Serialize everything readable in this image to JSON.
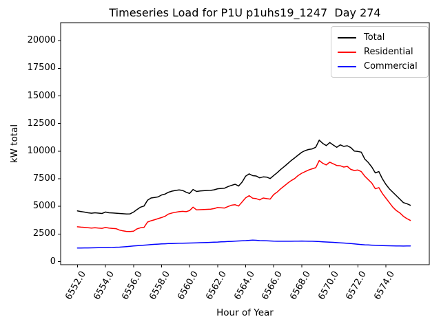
{
  "title": "Timeseries Load for P1U p1uhs19_1247  Day 274",
  "legend": {
    "entries": [
      {
        "label": "Total",
        "color": "#000000"
      },
      {
        "label": "Residential",
        "color": "#ff0000"
      },
      {
        "label": "Commercial",
        "color": "#0000ff"
      }
    ]
  },
  "chart_data": {
    "type": "line",
    "title": "Timeseries Load for P1U p1uhs19_1247  Day 274",
    "xlabel": "Hour of Year",
    "ylabel": "kW total",
    "grid": false,
    "legend_position": "upper right",
    "xlim": [
      6550.8,
      6577.1
    ],
    "ylim": [
      -280,
      21630
    ],
    "xtick_values": [
      6552,
      6554,
      6556,
      6558,
      6560,
      6562,
      6564,
      6566,
      6568,
      6570,
      6572,
      6574
    ],
    "xtick_labels": [
      "6552.0",
      "6554.0",
      "6556.0",
      "6558.0",
      "6560.0",
      "6562.0",
      "6564.0",
      "6566.0",
      "6568.0",
      "6570.0",
      "6572.0",
      "6574.0"
    ],
    "ytick_values": [
      0,
      2500,
      5000,
      7500,
      10000,
      12500,
      15000,
      17500,
      20000
    ],
    "ytick_labels": [
      "0",
      "2500",
      "5000",
      "7500",
      "10000",
      "12500",
      "15000",
      "17500",
      "20000"
    ],
    "x_start": 6552.0,
    "x_step": 0.25,
    "series": [
      {
        "name": "Total",
        "color": "#000000",
        "values": [
          4590,
          4530,
          4480,
          4420,
          4380,
          4420,
          4390,
          4360,
          4490,
          4420,
          4400,
          4380,
          4360,
          4330,
          4310,
          4320,
          4480,
          4720,
          4930,
          5030,
          5550,
          5760,
          5800,
          5860,
          6030,
          6110,
          6280,
          6380,
          6440,
          6490,
          6440,
          6280,
          6170,
          6530,
          6350,
          6390,
          6420,
          6440,
          6450,
          6500,
          6590,
          6620,
          6650,
          6800,
          6900,
          7000,
          6840,
          7200,
          7730,
          7940,
          7780,
          7750,
          7580,
          7670,
          7650,
          7520,
          7790,
          8050,
          8350,
          8600,
          8870,
          9150,
          9390,
          9650,
          9900,
          10050,
          10150,
          10200,
          10350,
          11000,
          10700,
          10500,
          10780,
          10550,
          10350,
          10570,
          10430,
          10490,
          10320,
          10010,
          9970,
          9910,
          9280,
          8970,
          8560,
          8030,
          8150,
          7500,
          7000,
          6590,
          6280,
          5970,
          5660,
          5340,
          5240,
          5100
        ]
      },
      {
        "name": "Residential",
        "color": "#ff0000",
        "values": [
          3150,
          3120,
          3100,
          3060,
          3030,
          3060,
          3030,
          3010,
          3090,
          3040,
          3000,
          2980,
          2850,
          2780,
          2730,
          2720,
          2760,
          2960,
          3060,
          3100,
          3580,
          3700,
          3790,
          3890,
          3990,
          4100,
          4310,
          4400,
          4470,
          4520,
          4550,
          4520,
          4620,
          4930,
          4680,
          4700,
          4720,
          4730,
          4750,
          4800,
          4890,
          4870,
          4850,
          4990,
          5110,
          5150,
          5030,
          5400,
          5770,
          5970,
          5740,
          5700,
          5590,
          5760,
          5700,
          5660,
          6070,
          6300,
          6590,
          6850,
          7100,
          7330,
          7520,
          7800,
          8000,
          8150,
          8300,
          8400,
          8500,
          9150,
          8900,
          8750,
          9000,
          8850,
          8700,
          8680,
          8560,
          8620,
          8350,
          8250,
          8290,
          8150,
          7730,
          7420,
          7100,
          6590,
          6700,
          6170,
          5760,
          5340,
          4930,
          4620,
          4410,
          4100,
          3890,
          3730
        ]
      },
      {
        "name": "Commercial",
        "color": "#0000ff",
        "values": [
          1230,
          1233,
          1236,
          1240,
          1245,
          1250,
          1255,
          1258,
          1265,
          1275,
          1285,
          1298,
          1310,
          1330,
          1355,
          1385,
          1410,
          1440,
          1465,
          1490,
          1515,
          1540,
          1560,
          1580,
          1600,
          1615,
          1630,
          1640,
          1650,
          1660,
          1670,
          1675,
          1680,
          1690,
          1700,
          1710,
          1720,
          1730,
          1745,
          1760,
          1770,
          1785,
          1800,
          1815,
          1830,
          1850,
          1870,
          1885,
          1900,
          1925,
          1940,
          1930,
          1900,
          1890,
          1880,
          1865,
          1850,
          1845,
          1840,
          1840,
          1840,
          1845,
          1850,
          1855,
          1860,
          1855,
          1845,
          1840,
          1830,
          1810,
          1790,
          1775,
          1760,
          1740,
          1720,
          1700,
          1680,
          1655,
          1630,
          1600,
          1570,
          1545,
          1520,
          1505,
          1490,
          1475,
          1460,
          1450,
          1440,
          1432,
          1425,
          1418,
          1410,
          1408,
          1410,
          1420
        ]
      }
    ]
  }
}
